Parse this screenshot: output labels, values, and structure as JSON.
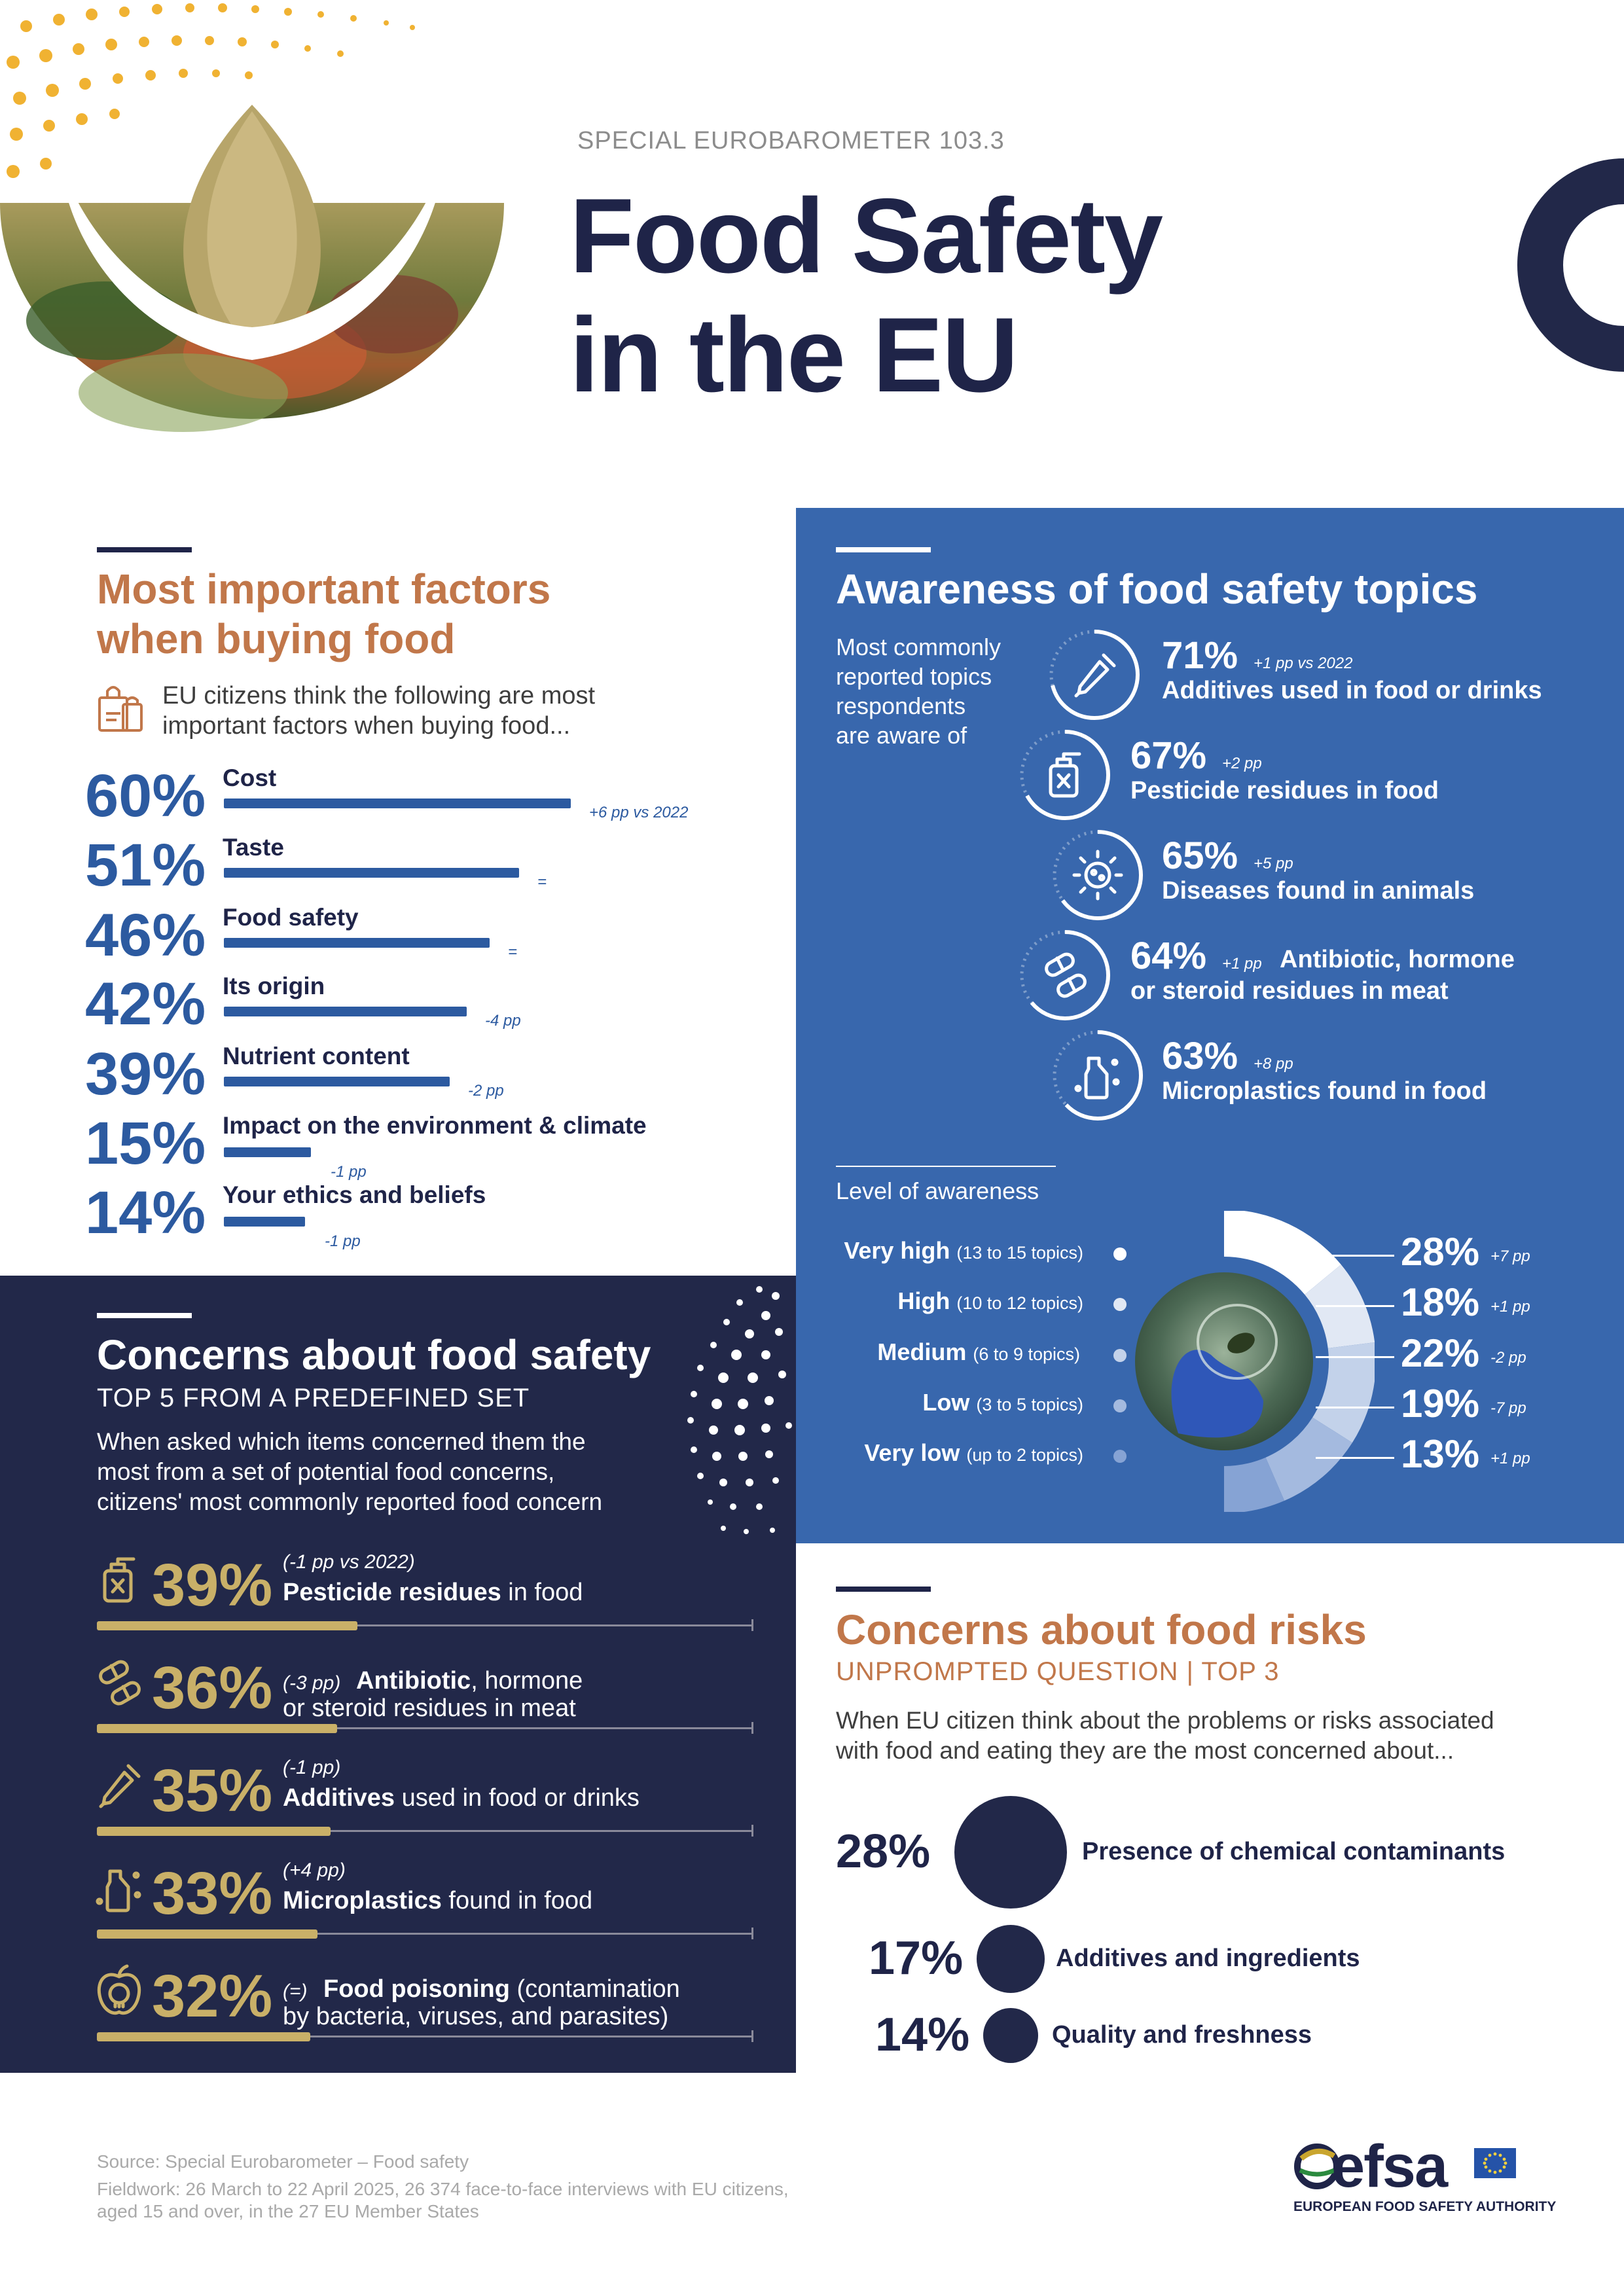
{
  "header": {
    "subtitle": "SPECIAL EUROBAROMETER 103.3",
    "title_line1": "Food Safety",
    "title_line2": "in the EU"
  },
  "factors": {
    "heading_line1": "Most important factors",
    "heading_line2": "when buying food",
    "intro_line1": "EU citizens think the following are most",
    "intro_line2": "important factors when buying food...",
    "icon": "shopping-bag-icon",
    "rows": [
      {
        "pct": "60%",
        "label": "Cost",
        "value": 60,
        "note": "+6 pp vs 2022"
      },
      {
        "pct": "51%",
        "label": "Taste",
        "value": 51,
        "note": "="
      },
      {
        "pct": "46%",
        "label": "Food safety",
        "value": 46,
        "note": "="
      },
      {
        "pct": "42%",
        "label": "Its origin",
        "value": 42,
        "note": "-4 pp"
      },
      {
        "pct": "39%",
        "label": "Nutrient content",
        "value": 39,
        "note": "-2 pp"
      },
      {
        "pct": "15%",
        "label": "Impact on the environment & climate",
        "value": 15,
        "note": "-1 pp"
      },
      {
        "pct": "14%",
        "label": "Your ethics and beliefs",
        "value": 14,
        "note": "-1 pp"
      }
    ]
  },
  "awareness": {
    "heading": "Awareness of food safety topics",
    "intro": [
      "Most commonly",
      "reported topics",
      "respondents",
      "are aware of"
    ],
    "topics": [
      {
        "pct": "71%",
        "change": "+1 pp vs 2022",
        "label": "Additives used in food or drinks",
        "label2": "",
        "icon": "dropper-icon",
        "value": 71
      },
      {
        "pct": "67%",
        "change": "+2 pp",
        "label": "Pesticide residues in food",
        "label2": "",
        "icon": "sprayer-icon",
        "value": 67
      },
      {
        "pct": "65%",
        "change": "+5 pp",
        "label": "Diseases found in animals",
        "label2": "",
        "icon": "virus-icon",
        "value": 65
      },
      {
        "pct": "64%",
        "change": "+1 pp",
        "label": "Antibiotic, hormone",
        "label2": "or steroid residues in meat",
        "icon": "pills-icon",
        "value": 64
      },
      {
        "pct": "63%",
        "change": "+8 pp",
        "label": "Microplastics found in food",
        "label2": "",
        "icon": "bottle-icon",
        "value": 63
      }
    ],
    "level_heading": "Level of awareness",
    "levels": [
      {
        "name": "Very high",
        "range": "(13 to 15 topics)",
        "pct": "28%",
        "change": "+7 pp",
        "value": 28,
        "color": "#ffffff"
      },
      {
        "name": "High",
        "range": "(10 to 12 topics)",
        "pct": "18%",
        "change": "+1 pp",
        "value": 18,
        "color": "#e1e8f4"
      },
      {
        "name": "Medium",
        "range": "(6 to 9 topics)",
        "pct": "22%",
        "change": "-2 pp",
        "value": 22,
        "color": "#c3d2ea"
      },
      {
        "name": "Low",
        "range": "(3 to 5 topics)",
        "pct": "19%",
        "change": "-7 pp",
        "value": 19,
        "color": "#a4badf"
      },
      {
        "name": "Very low",
        "range": "(up to 2 topics)",
        "pct": "13%",
        "change": "+1 pp",
        "value": 13,
        "color": "#86a3d4"
      }
    ]
  },
  "concerns": {
    "heading": "Concerns about food safety",
    "subheading": "TOP 5 FROM A PREDEFINED SET",
    "intro": [
      "When asked which items concerned them the",
      "most from a set of potential food concerns,",
      "citizens' most commonly reported food concern"
    ],
    "items": [
      {
        "pct": "39%",
        "change": "(-1 pp vs 2022)",
        "bold": "Pesticide residues",
        "rest": " in food",
        "line2": "",
        "value": 39,
        "icon": "sprayer-icon"
      },
      {
        "pct": "36%",
        "change": "(-3 pp)",
        "bold": "Antibiotic",
        "rest": ", hormone",
        "line2": "or steroid residues in meat",
        "value": 36,
        "icon": "pills-icon"
      },
      {
        "pct": "35%",
        "change": "(-1 pp)",
        "bold": "Additives",
        "rest": " used in food or drinks",
        "line2": "",
        "value": 35,
        "icon": "dropper-icon"
      },
      {
        "pct": "33%",
        "change": "(+4 pp)",
        "bold": "Microplastics",
        "rest": " found in food",
        "line2": "",
        "value": 33,
        "icon": "bottle-icon"
      },
      {
        "pct": "32%",
        "change": "(=)",
        "bold": "Food poisoning",
        "rest": " (contamination",
        "line2": "by bacteria, viruses, and parasites)",
        "value": 32,
        "icon": "apple-skull-icon"
      }
    ]
  },
  "risks": {
    "heading": "Concerns about food risks",
    "subheading": "UNPROMPTED QUESTION | TOP 3",
    "intro": [
      "When EU citizen think about the problems or risks associated",
      "with food and eating they are the most concerned about..."
    ],
    "items": [
      {
        "pct": "28%",
        "label": "Presence of chemical contaminants",
        "value": 28
      },
      {
        "pct": "17%",
        "label": "Additives and ingredients",
        "value": 17
      },
      {
        "pct": "14%",
        "label": "Quality and freshness",
        "value": 14
      }
    ]
  },
  "footer": {
    "source": "Source: Special Eurobarometer – Food safety",
    "fieldwork1": "Fieldwork: 26 March to 22 April 2025, 26 374 face-to-face interviews with EU citizens,",
    "fieldwork2": "aged 15 and over, in the 27 EU Member States",
    "logo_text": "efsa",
    "logo_caption": "EUROPEAN FOOD SAFETY AUTHORITY"
  },
  "colors": {
    "navy": "#1f2448",
    "blue": "#3867ad",
    "orange": "#c1774a",
    "gold": "#c9b068"
  }
}
